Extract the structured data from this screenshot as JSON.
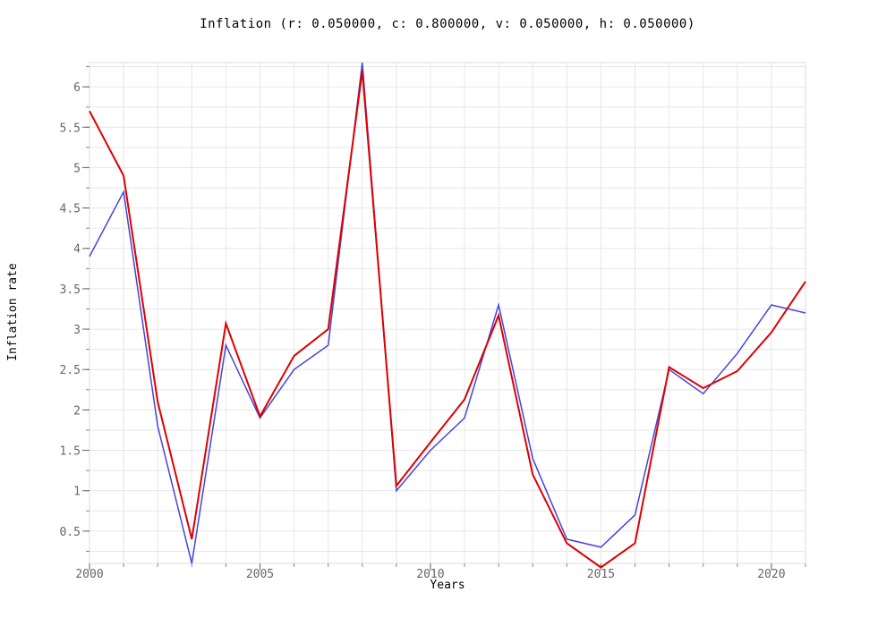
{
  "chart_data": {
    "type": "line",
    "title": "Inflation (r: 0.050000, c: 0.800000, v: 0.050000, h: 0.050000)",
    "xlabel": "Years",
    "ylabel": "Inflation rate",
    "xlim": [
      2000,
      2021
    ],
    "ylim": [
      0.1,
      6.3
    ],
    "grid": true,
    "legend": "none",
    "x_ticks": [
      "2000",
      "2005",
      "2010",
      "2015",
      "2020"
    ],
    "y_ticks": [
      "0.5",
      "1",
      "1.5",
      "2",
      "2.5",
      "3",
      "3.5",
      "4",
      "4.5",
      "5",
      "5.5",
      "6"
    ],
    "x": [
      2000,
      2001,
      2002,
      2003,
      2004,
      2005,
      2006,
      2007,
      2008,
      2009,
      2010,
      2011,
      2012,
      2013,
      2014,
      2015,
      2016,
      2017,
      2018,
      2019,
      2020,
      2021
    ],
    "series": [
      {
        "color": "#4444dd",
        "values": [
          3.9,
          4.7,
          1.8,
          0.1,
          2.8,
          1.9,
          2.5,
          2.8,
          6.3,
          1.0,
          1.5,
          1.9,
          3.3,
          1.4,
          0.4,
          0.3,
          0.7,
          2.5,
          2.2,
          2.7,
          3.3,
          3.2
        ]
      },
      {
        "color": "#dd0000",
        "values": [
          5.7,
          4.9,
          2.1,
          0.4,
          3.07,
          1.92,
          2.67,
          3.0,
          6.2,
          1.06,
          1.6,
          2.13,
          3.17,
          1.2,
          0.35,
          0.05,
          0.35,
          2.53,
          2.27,
          2.48,
          2.96,
          3.59
        ]
      }
    ]
  }
}
